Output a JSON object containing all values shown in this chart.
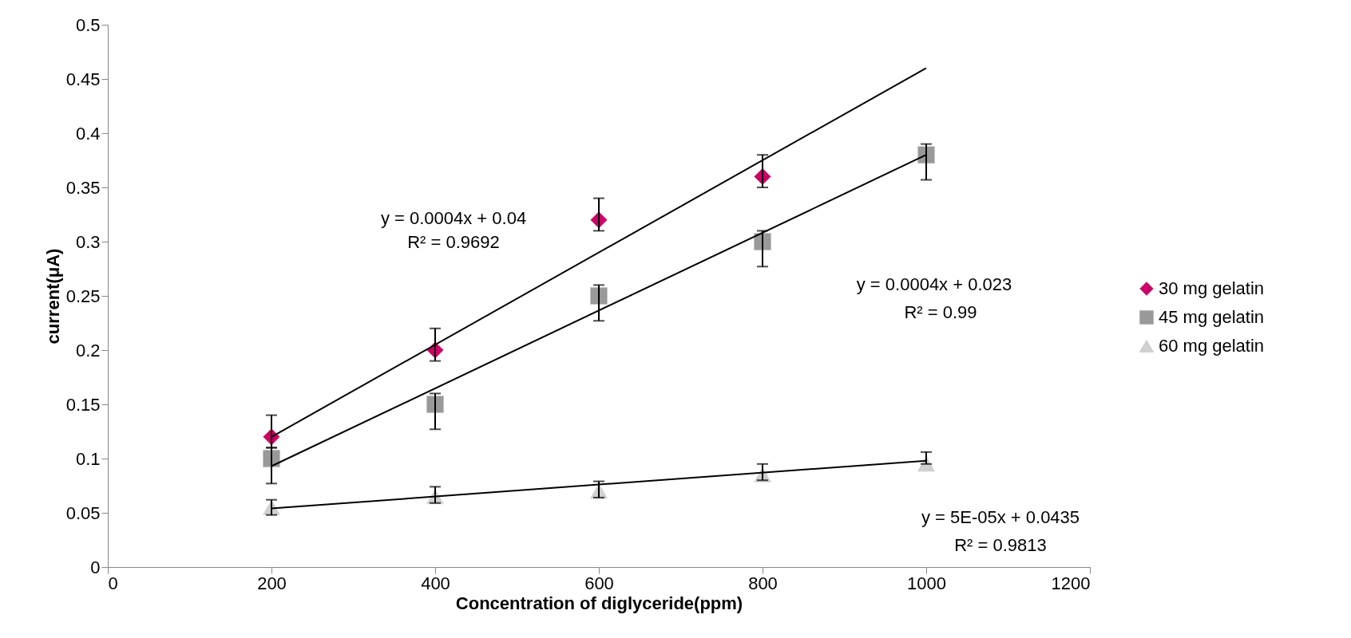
{
  "chart_data": {
    "type": "scatter",
    "xlabel": "Concentration of diglyceride(ppm)",
    "ylabel": "current(μA)",
    "xlim": [
      0,
      1200
    ],
    "xticks": [
      0,
      200,
      400,
      600,
      800,
      1000,
      1200
    ],
    "ylim": [
      0,
      0.5
    ],
    "yticks": [
      0,
      0.05,
      0.1,
      0.15,
      0.2,
      0.25,
      0.3,
      0.35,
      0.4,
      0.45,
      0.5
    ],
    "grid": false,
    "legend": "right",
    "series": [
      {
        "name": "30 mg gelatin",
        "marker": "diamond",
        "color": "#cc0066",
        "x": [
          200,
          400,
          600,
          800
        ],
        "values": [
          0.12,
          0.2,
          0.32,
          0.36
        ],
        "errors": [
          [
            0.11,
            0.14
          ],
          [
            0.19,
            0.22
          ],
          [
            0.31,
            0.34
          ],
          [
            0.35,
            0.38
          ]
        ]
      },
      {
        "name": "45 mg gelatin",
        "marker": "square",
        "color": "#999999",
        "x": [
          200,
          400,
          600,
          800,
          1000
        ],
        "values": [
          0.1,
          0.15,
          0.25,
          0.3,
          0.38
        ],
        "errors": [
          [
            0.077,
            0.11
          ],
          [
            0.127,
            0.16
          ],
          [
            0.227,
            0.26
          ],
          [
            0.277,
            0.31
          ],
          [
            0.357,
            0.39
          ]
        ]
      },
      {
        "name": "60 mg gelatin",
        "marker": "triangle",
        "color": "#d0d0d0",
        "x": [
          200,
          400,
          600,
          800,
          1000
        ],
        "values": [
          0.055,
          0.065,
          0.07,
          0.085,
          0.095
        ],
        "errors": [
          [
            0.048,
            0.062
          ],
          [
            0.059,
            0.074
          ],
          [
            0.064,
            0.079
          ],
          [
            0.08,
            0.095
          ],
          [
            0.095,
            0.106
          ]
        ]
      },
      {
        "type": "line",
        "color": "#000000",
        "x": [
          200,
          1000
        ],
        "values": [
          0.12,
          0.46
        ]
      },
      {
        "type": "line",
        "color": "#000000",
        "x": [
          200,
          1000
        ],
        "values": [
          0.093,
          0.38
        ]
      },
      {
        "type": "line",
        "color": "#000000",
        "x": [
          200,
          1000
        ],
        "values": [
          0.054,
          0.098
        ]
      }
    ],
    "annotations": [
      "y = 0.0004x + 0.04",
      "R² = 0.9692",
      "y = 0.0004x + 0.023",
      "R² = 0.99",
      "y = 5E-05x + 0.0435",
      "R² = 0.9813"
    ]
  }
}
